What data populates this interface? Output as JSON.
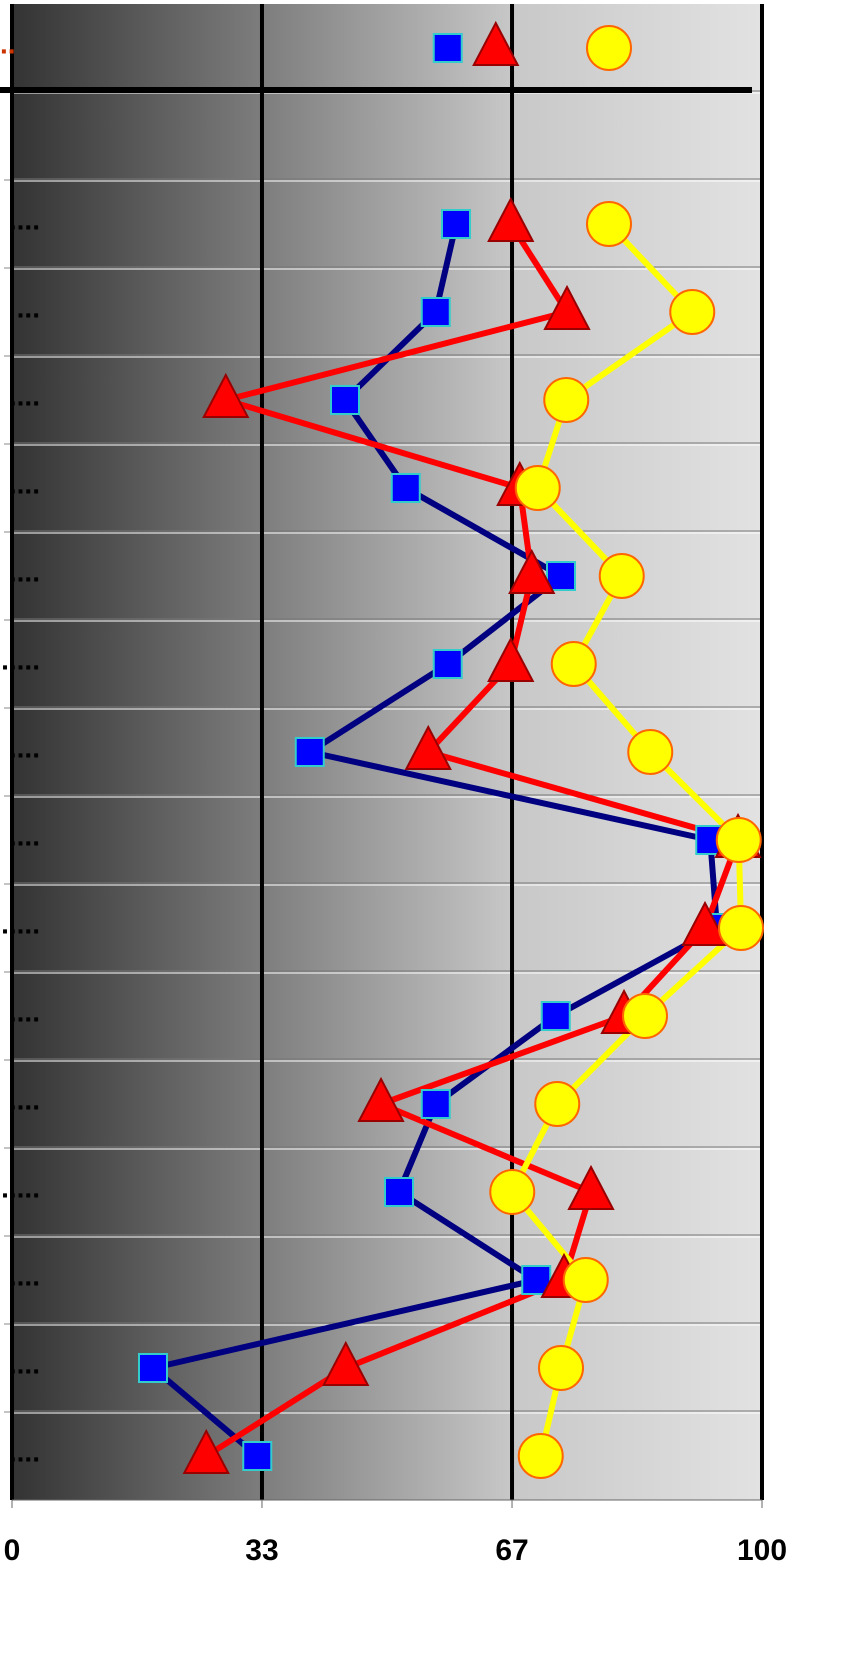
{
  "chart_data": {
    "type": "line",
    "categories": [
      "..",
      null,
      "....",
      "...",
      "....",
      "....",
      "....",
      ".....",
      "....",
      "....",
      ".....",
      "....",
      "....",
      ".....",
      "....",
      "....",
      "...."
    ],
    "series": [
      {
        "color": "#000080",
        "marker": "square",
        "marker_color": "#0000ff",
        "marker_edge": "#33cccc",
        "values": [
          58.1,
          null,
          59.2,
          56.5,
          44.4,
          52.5,
          73.2,
          58.1,
          39.7,
          93.1,
          94.0,
          72.5,
          56.5,
          51.6,
          69.9,
          18.8,
          32.7
        ]
      },
      {
        "color": "#ff0000",
        "marker": "triangle",
        "marker_color": "#ff0000",
        "marker_edge": "#990000",
        "values": [
          64.5,
          null,
          66.5,
          74.0,
          28.5,
          67.7,
          69.3,
          66.5,
          55.5,
          96.8,
          92.4,
          81.6,
          49.2,
          77.2,
          73.6,
          44.5,
          25.9
        ]
      },
      {
        "color": "#ffff00",
        "marker": "circle",
        "marker_color": "#ffff00",
        "marker_edge": "#ff6600",
        "values": [
          79.6,
          null,
          79.6,
          90.7,
          73.9,
          70.1,
          81.3,
          74.9,
          85.1,
          96.9,
          97.2,
          84.4,
          72.7,
          66.7,
          76.5,
          73.2,
          70.5
        ]
      }
    ],
    "xlim": [
      0,
      100
    ],
    "xticks": [
      0,
      {
        "value": 33.33,
        "label": "33"
      },
      {
        "value": 66.67,
        "label": "67"
      },
      100
    ],
    "grid": true
  }
}
